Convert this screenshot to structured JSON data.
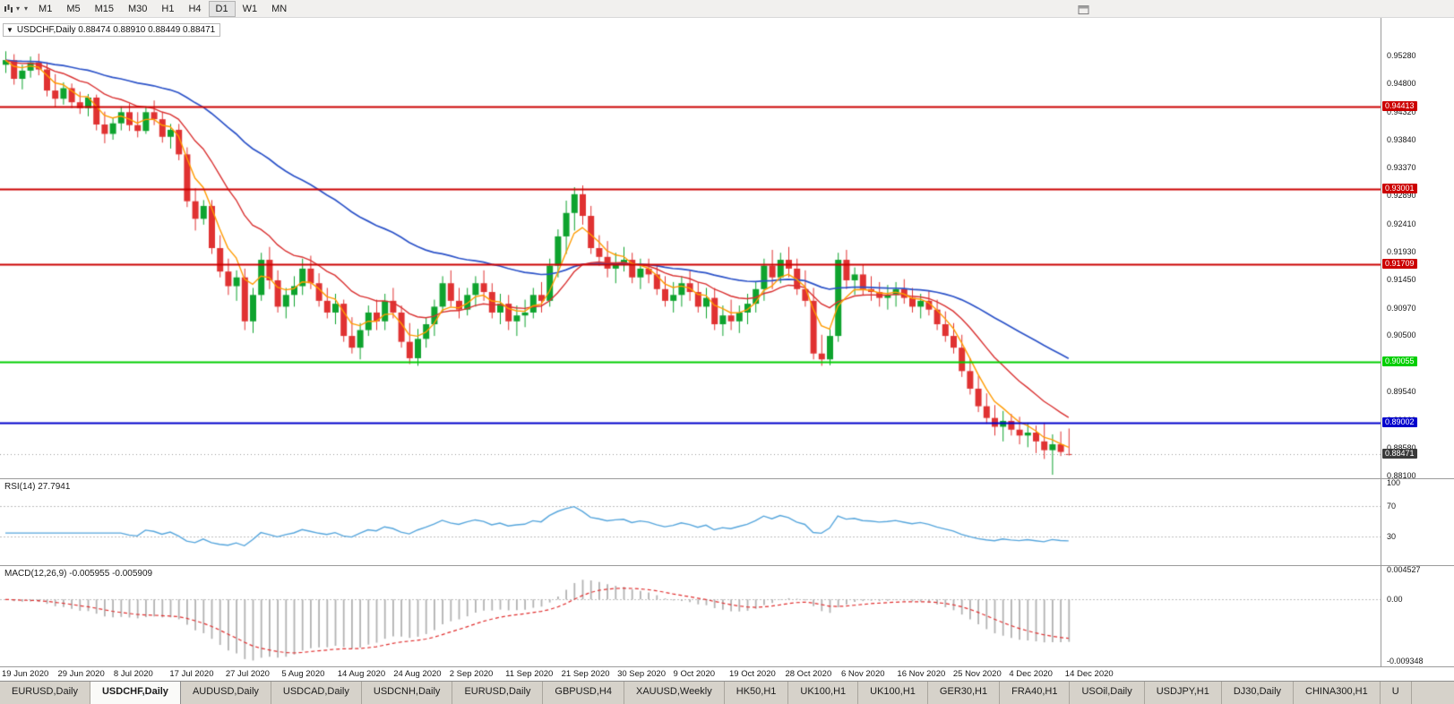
{
  "toolbar": {
    "timeframes": [
      "M1",
      "M5",
      "M15",
      "M30",
      "H1",
      "H4",
      "D1",
      "W1",
      "MN"
    ],
    "active_timeframe": "D1"
  },
  "chart": {
    "symbol_label": "USDCHF,Daily 0.88474 0.88910 0.88449 0.88471",
    "price_axis_labels": [
      "0.95280",
      "0.94800",
      "0.94320",
      "0.93840",
      "0.93370",
      "0.92890",
      "0.92410",
      "0.91930",
      "0.91450",
      "0.90970",
      "0.90500",
      "0.90020",
      "0.89540",
      "0.89060",
      "0.88580",
      "0.88100"
    ],
    "hlines": [
      {
        "value": 0.94413,
        "label": "0.94413",
        "color": "#cc0000",
        "bg": "#cc0000",
        "fg": "#ffffff"
      },
      {
        "value": 0.93001,
        "label": "0.93001",
        "color": "#cc0000",
        "bg": "#cc0000",
        "fg": "#ffffff"
      },
      {
        "value": 0.91709,
        "label": "0.91709",
        "color": "#cc0000",
        "bg": "#cc0000",
        "fg": "#ffffff"
      },
      {
        "value": 0.90055,
        "label": "0.90055",
        "color": "#00ce00",
        "bg": "#00ce00",
        "fg": "#ffffff"
      },
      {
        "value": 0.89002,
        "label": "0.89002",
        "color": "#0000cc",
        "bg": "#0000cc",
        "fg": "#ffffff"
      }
    ],
    "current_price": {
      "value": 0.88471,
      "label": "0.88471",
      "bg": "#3a3a3a",
      "fg": "#ffffff"
    }
  },
  "rsi": {
    "label": "RSI(14) 27.7941",
    "value": 27.7941,
    "levels": [
      70,
      30
    ],
    "axis": [
      {
        "value": 100,
        "label": "100"
      },
      {
        "value": 70,
        "label": "70"
      },
      {
        "value": 30,
        "label": "30"
      }
    ]
  },
  "macd": {
    "label": "MACD(12,26,9) -0.005955 -0.005909",
    "main_value": -0.005955,
    "signal_value": -0.005909,
    "axis": [
      {
        "value": 0.004527,
        "label": "0.004527"
      },
      {
        "value": 0,
        "label": "0.00"
      },
      {
        "value": -0.009348,
        "label": "-0.009348"
      }
    ]
  },
  "date_axis": [
    "19 Jun 2020",
    "29 Jun 2020",
    "8 Jul 2020",
    "17 Jul 2020",
    "27 Jul 2020",
    "5 Aug 2020",
    "14 Aug 2020",
    "24 Aug 2020",
    "2 Sep 2020",
    "11 Sep 2020",
    "21 Sep 2020",
    "30 Sep 2020",
    "9 Oct 2020",
    "19 Oct 2020",
    "28 Oct 2020",
    "6 Nov 2020",
    "16 Nov 2020",
    "25 Nov 2020",
    "4 Dec 2020",
    "14 Dec 2020"
  ],
  "tabs": [
    {
      "label": "EURUSD,Daily",
      "active": false
    },
    {
      "label": "USDCHF,Daily",
      "active": true
    },
    {
      "label": "AUDUSD,Daily",
      "active": false
    },
    {
      "label": "USDCAD,Daily",
      "active": false
    },
    {
      "label": "USDCNH,Daily",
      "active": false
    },
    {
      "label": "EURUSD,Daily",
      "active": false
    },
    {
      "label": "GBPUSD,H4",
      "active": false
    },
    {
      "label": "XAUUSD,Weekly",
      "active": false
    },
    {
      "label": "HK50,H1",
      "active": false
    },
    {
      "label": "UK100,H1",
      "active": false
    },
    {
      "label": "UK100,H1",
      "active": false
    },
    {
      "label": "GER30,H1",
      "active": false
    },
    {
      "label": "FRA40,H1",
      "active": false
    },
    {
      "label": "USOil,Daily",
      "active": false
    },
    {
      "label": "USDJPY,H1",
      "active": false
    },
    {
      "label": "DJ30,Daily",
      "active": false
    },
    {
      "label": "CHINA300,H1",
      "active": false
    },
    {
      "label": "U",
      "active": false
    }
  ],
  "colors": {
    "candle_up": "#0ea32e",
    "candle_down": "#e03232",
    "ma_blue": "#2b52c8",
    "ma_red": "#d93030",
    "ma_orange": "#ff9b00",
    "rsi_line": "#55a5dc",
    "macd_bar": "#b2b2b2",
    "macd_signal": "#e03030",
    "level_dotted": "#bdbdbd"
  },
  "chart_data": {
    "type": "candlestick",
    "title": "USDCHF Daily",
    "ylim": [
      0.8806,
      0.9592
    ],
    "y_tick_labels": [
      "0.95280",
      "0.94800",
      "0.94320",
      "0.93840",
      "0.93370",
      "0.92890",
      "0.92410",
      "0.91930",
      "0.91450",
      "0.90970",
      "0.90500",
      "0.90020",
      "0.89540",
      "0.89060",
      "0.88580",
      "0.88100"
    ],
    "x_tick_labels": [
      "19 Jun 2020",
      "29 Jun 2020",
      "8 Jul 2020",
      "17 Jul 2020",
      "27 Jul 2020",
      "5 Aug 2020",
      "14 Aug 2020",
      "24 Aug 2020",
      "2 Sep 2020",
      "11 Sep 2020",
      "21 Sep 2020",
      "30 Sep 2020",
      "9 Oct 2020",
      "19 Oct 2020",
      "28 Oct 2020",
      "6 Nov 2020",
      "16 Nov 2020",
      "25 Nov 2020",
      "4 Dec 2020",
      "14 Dec 2020"
    ],
    "horizontal_levels": [
      0.94413,
      0.93001,
      0.91709,
      0.90055,
      0.89002
    ],
    "last_price": 0.88471,
    "subcharts": [
      {
        "type": "line",
        "name": "RSI(14)",
        "last_value": 27.7941,
        "levels": [
          70,
          30
        ],
        "ylim": [
          0,
          100
        ]
      },
      {
        "type": "bar+line",
        "name": "MACD(12,26,9)",
        "last_values": [
          -0.005955,
          -0.005909
        ],
        "ylim": [
          -0.009348,
          0.004527
        ]
      }
    ],
    "ohlc": [
      [
        0.9512,
        0.9535,
        0.9498,
        0.952
      ],
      [
        0.952,
        0.953,
        0.9478,
        0.9488
      ],
      [
        0.9488,
        0.9512,
        0.947,
        0.9502
      ],
      [
        0.9502,
        0.9526,
        0.949,
        0.9516
      ],
      [
        0.9516,
        0.9531,
        0.9494,
        0.9504
      ],
      [
        0.9504,
        0.9516,
        0.9458,
        0.9468
      ],
      [
        0.9468,
        0.9496,
        0.944,
        0.9454
      ],
      [
        0.9454,
        0.9482,
        0.9444,
        0.9472
      ],
      [
        0.9472,
        0.948,
        0.9438,
        0.9448
      ],
      [
        0.9448,
        0.9466,
        0.9428,
        0.9438
      ],
      [
        0.9438,
        0.9462,
        0.9424,
        0.9456
      ],
      [
        0.9456,
        0.9461,
        0.94,
        0.941
      ],
      [
        0.941,
        0.9432,
        0.9378,
        0.9394
      ],
      [
        0.9394,
        0.9422,
        0.9384,
        0.9412
      ],
      [
        0.9412,
        0.9441,
        0.94,
        0.9431
      ],
      [
        0.9431,
        0.9446,
        0.9399,
        0.9409
      ],
      [
        0.9409,
        0.9431,
        0.9388,
        0.9399
      ],
      [
        0.9399,
        0.9441,
        0.9394,
        0.9431
      ],
      [
        0.9431,
        0.9451,
        0.9409,
        0.9419
      ],
      [
        0.9419,
        0.9431,
        0.9379,
        0.9389
      ],
      [
        0.9389,
        0.9411,
        0.9369,
        0.9401
      ],
      [
        0.9401,
        0.9411,
        0.9349,
        0.9359
      ],
      [
        0.9359,
        0.9371,
        0.9269,
        0.9279
      ],
      [
        0.9279,
        0.9301,
        0.9229,
        0.9249
      ],
      [
        0.9249,
        0.9281,
        0.9239,
        0.9271
      ],
      [
        0.9271,
        0.9281,
        0.9189,
        0.9199
      ],
      [
        0.9199,
        0.9221,
        0.9149,
        0.9159
      ],
      [
        0.9159,
        0.9181,
        0.9119,
        0.9134
      ],
      [
        0.9134,
        0.9161,
        0.9109,
        0.9149
      ],
      [
        0.9149,
        0.9164,
        0.9059,
        0.9074
      ],
      [
        0.9074,
        0.9131,
        0.9054,
        0.9119
      ],
      [
        0.9119,
        0.9191,
        0.9109,
        0.9179
      ],
      [
        0.9179,
        0.9201,
        0.9129,
        0.9144
      ],
      [
        0.9144,
        0.9161,
        0.9089,
        0.9099
      ],
      [
        0.9099,
        0.9131,
        0.9079,
        0.9119
      ],
      [
        0.9119,
        0.9151,
        0.9099,
        0.9134
      ],
      [
        0.9134,
        0.9181,
        0.9119,
        0.9164
      ],
      [
        0.9164,
        0.9186,
        0.9129,
        0.9139
      ],
      [
        0.9139,
        0.9156,
        0.9099,
        0.9109
      ],
      [
        0.9109,
        0.9131,
        0.9079,
        0.9089
      ],
      [
        0.9089,
        0.9121,
        0.9069,
        0.9104
      ],
      [
        0.9104,
        0.9111,
        0.9039,
        0.9049
      ],
      [
        0.9049,
        0.9081,
        0.9019,
        0.9029
      ],
      [
        0.9029,
        0.9071,
        0.9009,
        0.9059
      ],
      [
        0.9059,
        0.9101,
        0.9049,
        0.9089
      ],
      [
        0.9089,
        0.9111,
        0.9059,
        0.9074
      ],
      [
        0.9074,
        0.9121,
        0.9059,
        0.9109
      ],
      [
        0.9109,
        0.9131,
        0.9079,
        0.9089
      ],
      [
        0.9089,
        0.9101,
        0.9029,
        0.9039
      ],
      [
        0.9039,
        0.9071,
        0.9001,
        0.9011
      ],
      [
        0.9011,
        0.9061,
        0.8998,
        0.9044
      ],
      [
        0.9044,
        0.9081,
        0.9029,
        0.9069
      ],
      [
        0.9069,
        0.9111,
        0.9049,
        0.9099
      ],
      [
        0.9099,
        0.9151,
        0.9089,
        0.9139
      ],
      [
        0.9139,
        0.9161,
        0.9099,
        0.9109
      ],
      [
        0.9109,
        0.9131,
        0.9079,
        0.9094
      ],
      [
        0.9094,
        0.9131,
        0.9084,
        0.9119
      ],
      [
        0.9119,
        0.9151,
        0.9099,
        0.9139
      ],
      [
        0.9139,
        0.9161,
        0.9109,
        0.9124
      ],
      [
        0.9124,
        0.9139,
        0.9079,
        0.9089
      ],
      [
        0.9089,
        0.9121,
        0.9069,
        0.9104
      ],
      [
        0.9104,
        0.9119,
        0.9059,
        0.9074
      ],
      [
        0.9074,
        0.9101,
        0.9049,
        0.9084
      ],
      [
        0.9084,
        0.9111,
        0.9064,
        0.9089
      ],
      [
        0.9089,
        0.9131,
        0.9079,
        0.9119
      ],
      [
        0.9119,
        0.9141,
        0.9089,
        0.9109
      ],
      [
        0.9109,
        0.9181,
        0.9099,
        0.9169
      ],
      [
        0.9169,
        0.9231,
        0.9149,
        0.9219
      ],
      [
        0.9219,
        0.928,
        0.9189,
        0.9259
      ],
      [
        0.9259,
        0.9303,
        0.9229,
        0.9291
      ],
      [
        0.9291,
        0.9306,
        0.9239,
        0.9254
      ],
      [
        0.9254,
        0.9271,
        0.9189,
        0.9199
      ],
      [
        0.9199,
        0.9221,
        0.9169,
        0.9184
      ],
      [
        0.9184,
        0.9211,
        0.9149,
        0.9164
      ],
      [
        0.9164,
        0.9191,
        0.9139,
        0.9174
      ],
      [
        0.9174,
        0.9201,
        0.9159,
        0.9179
      ],
      [
        0.9179,
        0.9191,
        0.9139,
        0.9149
      ],
      [
        0.9149,
        0.9181,
        0.9129,
        0.9164
      ],
      [
        0.9164,
        0.9181,
        0.9139,
        0.9154
      ],
      [
        0.9154,
        0.9171,
        0.9119,
        0.9129
      ],
      [
        0.9129,
        0.9151,
        0.9099,
        0.9109
      ],
      [
        0.9109,
        0.9141,
        0.9089,
        0.9119
      ],
      [
        0.9119,
        0.9151,
        0.9099,
        0.9139
      ],
      [
        0.9139,
        0.9161,
        0.9109,
        0.9124
      ],
      [
        0.9124,
        0.9141,
        0.9089,
        0.9099
      ],
      [
        0.9099,
        0.9131,
        0.9079,
        0.9114
      ],
      [
        0.9114,
        0.9131,
        0.9059,
        0.9069
      ],
      [
        0.9069,
        0.9101,
        0.9049,
        0.9084
      ],
      [
        0.9084,
        0.9111,
        0.9059,
        0.9074
      ],
      [
        0.9074,
        0.9101,
        0.9054,
        0.9089
      ],
      [
        0.9089,
        0.9121,
        0.9069,
        0.9104
      ],
      [
        0.9104,
        0.9141,
        0.9089,
        0.9129
      ],
      [
        0.9129,
        0.9181,
        0.9109,
        0.9169
      ],
      [
        0.9169,
        0.9196,
        0.9129,
        0.9149
      ],
      [
        0.9149,
        0.9191,
        0.9139,
        0.9179
      ],
      [
        0.9179,
        0.9201,
        0.9149,
        0.9164
      ],
      [
        0.9164,
        0.9181,
        0.9119,
        0.9129
      ],
      [
        0.9129,
        0.9161,
        0.9099,
        0.9109
      ],
      [
        0.9109,
        0.9131,
        0.9009,
        0.9019
      ],
      [
        0.9019,
        0.9051,
        0.8998,
        0.9009
      ],
      [
        0.9009,
        0.9061,
        0.8999,
        0.9049
      ],
      [
        0.9049,
        0.9191,
        0.9039,
        0.9179
      ],
      [
        0.9179,
        0.9196,
        0.9129,
        0.9144
      ],
      [
        0.9144,
        0.9166,
        0.9119,
        0.9154
      ],
      [
        0.9154,
        0.9171,
        0.9119,
        0.9129
      ],
      [
        0.9129,
        0.9151,
        0.9109,
        0.9124
      ],
      [
        0.9124,
        0.9141,
        0.9099,
        0.9114
      ],
      [
        0.9114,
        0.9136,
        0.9094,
        0.9119
      ],
      [
        0.9119,
        0.9141,
        0.9099,
        0.9129
      ],
      [
        0.9129,
        0.9146,
        0.9104,
        0.9114
      ],
      [
        0.9114,
        0.9131,
        0.9089,
        0.9099
      ],
      [
        0.9099,
        0.9121,
        0.9079,
        0.9109
      ],
      [
        0.9109,
        0.9126,
        0.9084,
        0.9094
      ],
      [
        0.9094,
        0.9111,
        0.9059,
        0.9069
      ],
      [
        0.9069,
        0.9091,
        0.9039,
        0.9049
      ],
      [
        0.9049,
        0.9071,
        0.9019,
        0.9029
      ],
      [
        0.9029,
        0.9051,
        0.8979,
        0.8989
      ],
      [
        0.8989,
        0.9011,
        0.8949,
        0.8959
      ],
      [
        0.8959,
        0.8981,
        0.8919,
        0.8929
      ],
      [
        0.8929,
        0.8951,
        0.8899,
        0.8909
      ],
      [
        0.8909,
        0.8931,
        0.8879,
        0.8894
      ],
      [
        0.8894,
        0.8921,
        0.8869,
        0.8904
      ],
      [
        0.8904,
        0.8916,
        0.8879,
        0.8889
      ],
      [
        0.8889,
        0.8911,
        0.8864,
        0.8879
      ],
      [
        0.8879,
        0.8901,
        0.8859,
        0.8884
      ],
      [
        0.8884,
        0.8896,
        0.8849,
        0.8869
      ],
      [
        0.8869,
        0.8901,
        0.8839,
        0.8854
      ],
      [
        0.8854,
        0.8881,
        0.8812,
        0.8864
      ],
      [
        0.8864,
        0.8886,
        0.8844,
        0.8851
      ],
      [
        0.88474,
        0.8891,
        0.88449,
        0.88471
      ]
    ]
  }
}
